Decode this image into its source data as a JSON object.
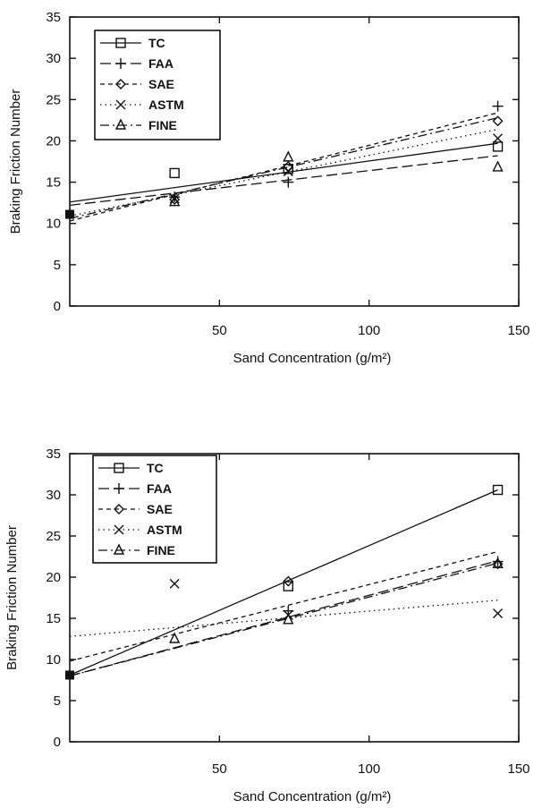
{
  "chart_data": [
    {
      "type": "scatter",
      "xlabel": "Sand Concentration (g/m²)",
      "ylabel": "Braking Friction Number",
      "xlim": [
        0,
        150
      ],
      "ylim": [
        0,
        35
      ],
      "x_ticks": [
        "50",
        "100",
        "150"
      ],
      "y_ticks": [
        "0",
        "5",
        "10",
        "15",
        "20",
        "25",
        "30",
        "35"
      ],
      "legend_position": "top-left",
      "baseline_point": {
        "x": 0,
        "y": 11.1
      },
      "series": [
        {
          "name": "TC",
          "marker": "square",
          "dash": "solid",
          "x": [
            35,
            73,
            143
          ],
          "y": [
            16.1,
            16.6,
            19.3
          ],
          "fit": [
            [
              0,
              12.6
            ],
            [
              143,
              19.7
            ]
          ]
        },
        {
          "name": "FAA",
          "marker": "plus",
          "dash": "long-dash",
          "x": [
            35,
            73,
            143
          ],
          "y": [
            13.2,
            15.0,
            24.2
          ],
          "fit": [
            [
              0,
              12.2
            ],
            [
              143,
              18.2
            ]
          ]
        },
        {
          "name": "SAE",
          "marker": "diamond",
          "dash": "dash",
          "x": [
            35,
            73,
            143
          ],
          "y": [
            12.9,
            16.9,
            22.4
          ],
          "fit": [
            [
              0,
              10.3
            ],
            [
              143,
              23.4
            ]
          ]
        },
        {
          "name": "ASTM",
          "marker": "x",
          "dash": "dot",
          "x": [
            35,
            73,
            143
          ],
          "y": [
            13.0,
            16.3,
            20.3
          ],
          "fit": [
            [
              0,
              10.9
            ],
            [
              143,
              21.4
            ]
          ]
        },
        {
          "name": "FINE",
          "marker": "triangle",
          "dash": "dash-dot",
          "x": [
            35,
            73,
            143
          ],
          "y": [
            12.6,
            18.0,
            16.8
          ],
          "fit": [
            [
              0,
              10.6
            ],
            [
              143,
              22.8
            ]
          ]
        }
      ]
    },
    {
      "type": "scatter",
      "xlabel": "Sand Concentration (g/m²)",
      "ylabel": "Braking Friction Number",
      "xlim": [
        0,
        150
      ],
      "ylim": [
        0,
        35
      ],
      "x_ticks": [
        "50",
        "100",
        "150"
      ],
      "y_ticks": [
        "0",
        "5",
        "10",
        "15",
        "20",
        "25",
        "30",
        "35"
      ],
      "legend_position": "top-left",
      "baseline_point": {
        "x": 0,
        "y": 8.1
      },
      "series": [
        {
          "name": "TC",
          "marker": "square",
          "dash": "solid",
          "x": [
            73,
            143
          ],
          "y": [
            18.9,
            30.6
          ],
          "fit": [
            [
              0,
              8.1
            ],
            [
              143,
              30.6
            ]
          ]
        },
        {
          "name": "FAA",
          "marker": "plus",
          "dash": "long-dash",
          "x": [
            73,
            143
          ],
          "y": [
            15.9,
            21.9
          ],
          "fit": [
            [
              0,
              8.0
            ],
            [
              143,
              22.0
            ]
          ]
        },
        {
          "name": "SAE",
          "marker": "diamond",
          "dash": "dash",
          "x": [
            73,
            143
          ],
          "y": [
            19.5,
            21.6
          ],
          "fit": [
            [
              0,
              9.8
            ],
            [
              143,
              23.1
            ]
          ]
        },
        {
          "name": "ASTM",
          "marker": "x",
          "dash": "dot",
          "x": [
            35,
            73,
            143
          ],
          "y": [
            19.2,
            15.4,
            15.6
          ],
          "fit": [
            [
              0,
              12.8
            ],
            [
              143,
              17.2
            ]
          ]
        },
        {
          "name": "FINE",
          "marker": "triangle",
          "dash": "dash-dot",
          "x": [
            35,
            73,
            143
          ],
          "y": [
            12.5,
            14.8,
            21.6
          ],
          "fit": [
            [
              0,
              8.0
            ],
            [
              143,
              21.7
            ]
          ]
        }
      ]
    }
  ]
}
